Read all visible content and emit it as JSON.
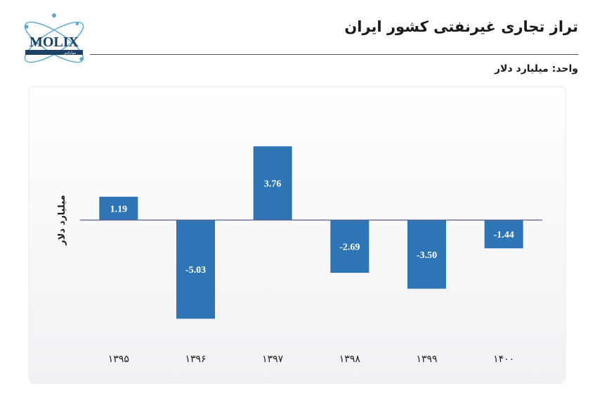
{
  "header": {
    "title": "تراز تجاری غیرنفتی کشور ایران",
    "unit_label": "واحد: میلیارد دلار"
  },
  "logo": {
    "text": "MOLIX",
    "subtext": "مولیکس"
  },
  "colors": {
    "bar": "#2e75b6",
    "axis": "#5a5a8a",
    "label": "#ffffff"
  },
  "chart_data": {
    "type": "bar",
    "title": "تراز تجاری غیرنفتی کشور ایران",
    "ylabel": "میلیارد دلار",
    "xlabel": "",
    "categories": [
      "۱۳۹۵",
      "۱۳۹۶",
      "۱۳۹۷",
      "۱۳۹۸",
      "۱۳۹۹",
      "۱۴۰۰"
    ],
    "values": [
      1.19,
      -5.03,
      3.76,
      -2.69,
      -3.5,
      -1.44
    ],
    "value_labels": [
      "1.19",
      "-5.03",
      "3.76",
      "-2.69",
      "-3.50",
      "-1.44"
    ],
    "ylim": [
      -5.03,
      3.76
    ],
    "grid": false,
    "legend": "none"
  }
}
